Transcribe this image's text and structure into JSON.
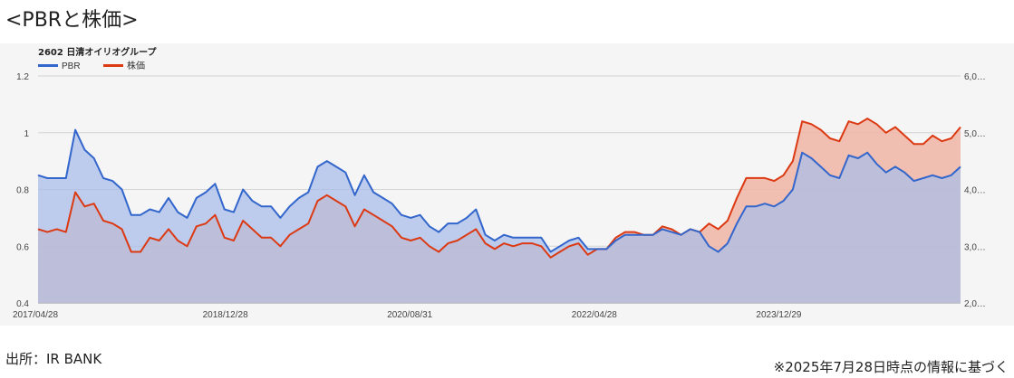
{
  "heading": "<PBRと株価>",
  "source": "出所：IR BANK",
  "note": "※2025年7月28日時点の情報に基づく",
  "chart_data": {
    "type": "area",
    "title": "2602 日清オイリオグループ",
    "legend_position": "top-left",
    "grid": true,
    "x_tick_labels": [
      "2017/04/28",
      "2018/12/28",
      "2020/08/31",
      "2022/04/28",
      "2023/12/29"
    ],
    "y_left": {
      "ylim": [
        0.4,
        1.2
      ],
      "ticks": [
        "0.4",
        "0.6",
        "0.8",
        "1",
        "1.2"
      ]
    },
    "y_right": {
      "ylim": [
        2.0,
        6.0
      ],
      "ticks": [
        "2,0…",
        "3,0…",
        "4,0…",
        "5,0…",
        "6,0…"
      ]
    },
    "series": [
      {
        "name": "PBR",
        "color": "#3366cc",
        "fill": "#a9bde8",
        "axis": "left",
        "values": [
          0.85,
          0.84,
          0.84,
          0.84,
          1.01,
          0.94,
          0.91,
          0.84,
          0.83,
          0.8,
          0.71,
          0.71,
          0.73,
          0.72,
          0.77,
          0.72,
          0.7,
          0.77,
          0.79,
          0.82,
          0.73,
          0.72,
          0.8,
          0.76,
          0.74,
          0.74,
          0.7,
          0.74,
          0.77,
          0.79,
          0.88,
          0.9,
          0.88,
          0.86,
          0.78,
          0.85,
          0.79,
          0.77,
          0.75,
          0.71,
          0.7,
          0.71,
          0.67,
          0.65,
          0.68,
          0.68,
          0.7,
          0.73,
          0.64,
          0.62,
          0.64,
          0.63,
          0.63,
          0.63,
          0.63,
          0.58,
          0.6,
          0.62,
          0.63,
          0.59,
          0.59,
          0.59,
          0.62,
          0.64,
          0.64,
          0.64,
          0.64,
          0.66,
          0.65,
          0.64,
          0.66,
          0.65,
          0.6,
          0.58,
          0.61,
          0.68,
          0.74,
          0.74,
          0.75,
          0.74,
          0.76,
          0.8,
          0.93,
          0.91,
          0.88,
          0.85,
          0.84,
          0.92,
          0.91,
          0.93,
          0.89,
          0.86,
          0.88,
          0.86,
          0.83,
          0.84,
          0.85,
          0.84,
          0.85,
          0.88
        ]
      },
      {
        "name": "株価",
        "color": "#dc3912",
        "fill": "#f0b5a5",
        "axis": "right",
        "values": [
          3.3,
          3.25,
          3.3,
          3.25,
          3.95,
          3.7,
          3.75,
          3.45,
          3.4,
          3.3,
          2.9,
          2.9,
          3.15,
          3.1,
          3.3,
          3.1,
          3.0,
          3.35,
          3.4,
          3.55,
          3.15,
          3.1,
          3.45,
          3.3,
          3.15,
          3.15,
          3.0,
          3.2,
          3.3,
          3.4,
          3.8,
          3.9,
          3.8,
          3.7,
          3.35,
          3.65,
          3.55,
          3.45,
          3.35,
          3.15,
          3.1,
          3.15,
          3.0,
          2.9,
          3.05,
          3.1,
          3.2,
          3.3,
          3.05,
          2.95,
          3.05,
          3.0,
          3.05,
          3.05,
          3.0,
          2.8,
          2.9,
          3.0,
          3.05,
          2.85,
          2.95,
          2.95,
          3.15,
          3.25,
          3.25,
          3.2,
          3.2,
          3.35,
          3.3,
          3.2,
          3.3,
          3.25,
          3.4,
          3.3,
          3.45,
          3.85,
          4.2,
          4.2,
          4.2,
          4.15,
          4.25,
          4.5,
          5.2,
          5.15,
          5.05,
          4.9,
          4.85,
          5.2,
          5.15,
          5.25,
          5.15,
          5.0,
          5.1,
          4.95,
          4.8,
          4.8,
          4.95,
          4.85,
          4.9,
          5.1
        ]
      }
    ]
  }
}
